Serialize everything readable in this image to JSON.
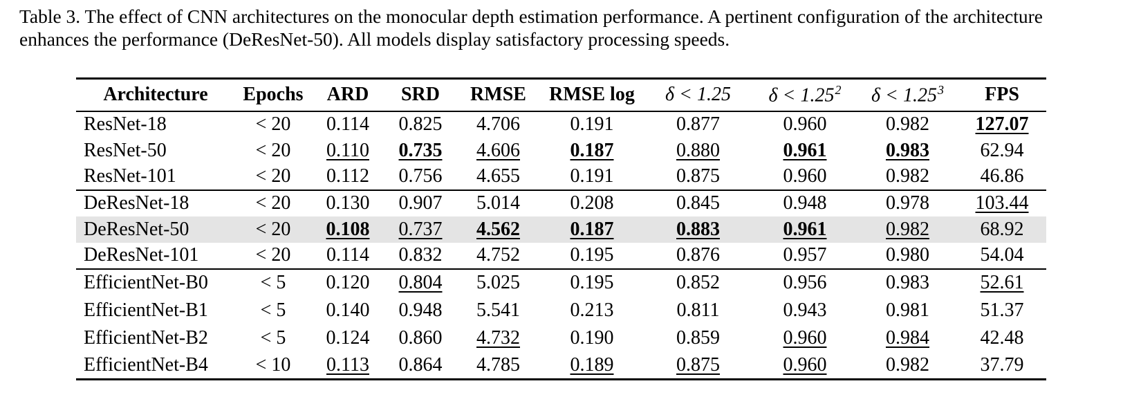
{
  "caption": {
    "line1": "Table 3. The effect of CNN architectures on the monocular depth estimation performance. A pertinent configuration of the architecture",
    "line2": "enhances the performance (DeResNet-50). All models display satisfactory processing speeds."
  },
  "table": {
    "highlight_color": "#e4e4e4",
    "headers": [
      {
        "label": "Architecture"
      },
      {
        "label": "Epochs"
      },
      {
        "label": "ARD"
      },
      {
        "label": "SRD"
      },
      {
        "label": "RMSE"
      },
      {
        "label": "RMSE log"
      },
      {
        "label": "δ < 1.25"
      },
      {
        "label": "δ < 1.25",
        "sup": "2"
      },
      {
        "label": "δ < 1.25",
        "sup": "3"
      },
      {
        "label": "FPS"
      }
    ],
    "groups": [
      {
        "name": "resnet",
        "rows": [
          {
            "architecture": "ResNet-18",
            "highlight": false,
            "cells": [
              {
                "text": "< 20",
                "style": "plain"
              },
              {
                "text": "0.114",
                "style": "plain"
              },
              {
                "text": "0.825",
                "style": "plain"
              },
              {
                "text": "4.706",
                "style": "plain"
              },
              {
                "text": "0.191",
                "style": "plain"
              },
              {
                "text": "0.877",
                "style": "plain"
              },
              {
                "text": "0.960",
                "style": "plain"
              },
              {
                "text": "0.982",
                "style": "plain"
              },
              {
                "text": "127.07",
                "style": "bold-underline"
              }
            ]
          },
          {
            "architecture": "ResNet-50",
            "highlight": false,
            "cells": [
              {
                "text": "< 20",
                "style": "plain"
              },
              {
                "text": "0.110",
                "style": "underline"
              },
              {
                "text": "0.735",
                "style": "bold-underline"
              },
              {
                "text": "4.606",
                "style": "underline"
              },
              {
                "text": "0.187",
                "style": "bold-underline"
              },
              {
                "text": "0.880",
                "style": "underline"
              },
              {
                "text": "0.961",
                "style": "bold-underline"
              },
              {
                "text": "0.983",
                "style": "bold-underline"
              },
              {
                "text": "62.94",
                "style": "plain"
              }
            ]
          },
          {
            "architecture": "ResNet-101",
            "highlight": false,
            "cells": [
              {
                "text": "< 20",
                "style": "plain"
              },
              {
                "text": "0.112",
                "style": "plain"
              },
              {
                "text": "0.756",
                "style": "plain"
              },
              {
                "text": "4.655",
                "style": "plain"
              },
              {
                "text": "0.191",
                "style": "plain"
              },
              {
                "text": "0.875",
                "style": "plain"
              },
              {
                "text": "0.960",
                "style": "plain"
              },
              {
                "text": "0.982",
                "style": "plain"
              },
              {
                "text": "46.86",
                "style": "plain"
              }
            ]
          }
        ]
      },
      {
        "name": "deresnet",
        "rows": [
          {
            "architecture": "DeResNet-18",
            "highlight": false,
            "cells": [
              {
                "text": "< 20",
                "style": "plain"
              },
              {
                "text": "0.130",
                "style": "plain"
              },
              {
                "text": "0.907",
                "style": "plain"
              },
              {
                "text": "5.014",
                "style": "plain"
              },
              {
                "text": "0.208",
                "style": "plain"
              },
              {
                "text": "0.845",
                "style": "plain"
              },
              {
                "text": "0.948",
                "style": "plain"
              },
              {
                "text": "0.978",
                "style": "plain"
              },
              {
                "text": "103.44",
                "style": "underline"
              }
            ]
          },
          {
            "architecture": "DeResNet-50",
            "highlight": true,
            "cells": [
              {
                "text": "< 20",
                "style": "plain"
              },
              {
                "text": "0.108",
                "style": "bold-underline"
              },
              {
                "text": "0.737",
                "style": "underline"
              },
              {
                "text": "4.562",
                "style": "bold-underline"
              },
              {
                "text": "0.187",
                "style": "bold-underline"
              },
              {
                "text": "0.883",
                "style": "bold-underline"
              },
              {
                "text": "0.961",
                "style": "bold-underline"
              },
              {
                "text": "0.982",
                "style": "underline"
              },
              {
                "text": "68.92",
                "style": "plain"
              }
            ]
          },
          {
            "architecture": "DeResNet-101",
            "highlight": false,
            "cells": [
              {
                "text": "< 20",
                "style": "plain"
              },
              {
                "text": "0.114",
                "style": "plain"
              },
              {
                "text": "0.832",
                "style": "plain"
              },
              {
                "text": "4.752",
                "style": "plain"
              },
              {
                "text": "0.195",
                "style": "plain"
              },
              {
                "text": "0.876",
                "style": "plain"
              },
              {
                "text": "0.957",
                "style": "plain"
              },
              {
                "text": "0.980",
                "style": "plain"
              },
              {
                "text": "54.04",
                "style": "plain"
              }
            ]
          }
        ]
      },
      {
        "name": "efficientnet",
        "rows": [
          {
            "architecture": "EfficientNet-B0",
            "highlight": false,
            "cells": [
              {
                "text": "< 5",
                "style": "plain"
              },
              {
                "text": "0.120",
                "style": "plain"
              },
              {
                "text": "0.804",
                "style": "underline"
              },
              {
                "text": "5.025",
                "style": "plain"
              },
              {
                "text": "0.195",
                "style": "plain"
              },
              {
                "text": "0.852",
                "style": "plain"
              },
              {
                "text": "0.956",
                "style": "plain"
              },
              {
                "text": "0.983",
                "style": "plain"
              },
              {
                "text": "52.61",
                "style": "underline"
              }
            ]
          },
          {
            "architecture": "EfficientNet-B1",
            "highlight": false,
            "cells": [
              {
                "text": "< 5",
                "style": "plain"
              },
              {
                "text": "0.140",
                "style": "plain"
              },
              {
                "text": "0.948",
                "style": "plain"
              },
              {
                "text": "5.541",
                "style": "plain"
              },
              {
                "text": "0.213",
                "style": "plain"
              },
              {
                "text": "0.811",
                "style": "plain"
              },
              {
                "text": "0.943",
                "style": "plain"
              },
              {
                "text": "0.981",
                "style": "plain"
              },
              {
                "text": "51.37",
                "style": "plain"
              }
            ]
          },
          {
            "architecture": "EfficientNet-B2",
            "highlight": false,
            "cells": [
              {
                "text": "< 5",
                "style": "plain"
              },
              {
                "text": "0.124",
                "style": "plain"
              },
              {
                "text": "0.860",
                "style": "plain"
              },
              {
                "text": "4.732",
                "style": "underline"
              },
              {
                "text": "0.190",
                "style": "plain"
              },
              {
                "text": "0.859",
                "style": "plain"
              },
              {
                "text": "0.960",
                "style": "underline"
              },
              {
                "text": "0.984",
                "style": "underline"
              },
              {
                "text": "42.48",
                "style": "plain"
              }
            ]
          },
          {
            "architecture": "EfficientNet-B4",
            "highlight": false,
            "cells": [
              {
                "text": "< 10",
                "style": "plain"
              },
              {
                "text": "0.113",
                "style": "underline"
              },
              {
                "text": "0.864",
                "style": "plain"
              },
              {
                "text": "4.785",
                "style": "plain"
              },
              {
                "text": "0.189",
                "style": "underline"
              },
              {
                "text": "0.875",
                "style": "underline"
              },
              {
                "text": "0.960",
                "style": "underline"
              },
              {
                "text": "0.982",
                "style": "plain"
              },
              {
                "text": "37.79",
                "style": "plain"
              }
            ]
          }
        ]
      }
    ]
  }
}
